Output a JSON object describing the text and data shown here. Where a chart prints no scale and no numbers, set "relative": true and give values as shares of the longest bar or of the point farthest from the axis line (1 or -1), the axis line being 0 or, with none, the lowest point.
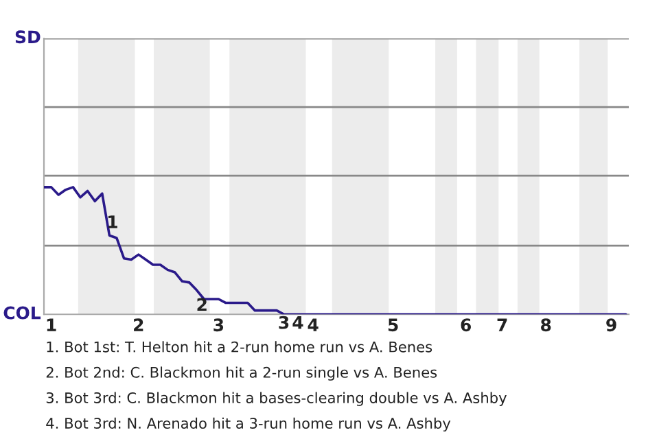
{
  "chart_data": {
    "type": "line",
    "relative": true,
    "categories": [
      null,
      "1",
      null,
      null,
      null,
      null,
      null,
      null,
      null,
      null,
      null,
      null,
      null,
      "2",
      null,
      null,
      null,
      null,
      null,
      null,
      null,
      null,
      null,
      null,
      "3",
      null,
      null,
      null,
      null,
      null,
      null,
      null,
      null,
      null,
      null,
      null,
      null,
      "4",
      null,
      null,
      null,
      null,
      null,
      null,
      null,
      null,
      null,
      null,
      "5",
      null,
      null,
      null,
      null,
      null,
      null,
      null,
      null,
      null,
      "6",
      null,
      null,
      null,
      null,
      "7",
      null,
      null,
      null,
      null,
      null,
      "8",
      null,
      null,
      null,
      null,
      null,
      null,
      null,
      null,
      "9",
      null,
      null
    ],
    "series": [
      {
        "color": "#2a1a8a",
        "values": [
          1,
          1,
          0.94,
          0.98,
          1,
          0.92,
          0.97,
          0.89,
          0.95,
          0.62,
          0.6,
          0.44,
          0.43,
          0.47,
          0.43,
          0.39,
          0.39,
          0.35,
          0.33,
          0.26,
          0.25,
          0.19,
          0.12,
          0.12,
          0.12,
          0.09,
          0.09,
          0.09,
          0.09,
          0.03,
          0.03,
          0.03,
          0.03,
          0,
          0,
          0,
          0,
          0,
          0,
          0,
          0,
          0,
          0,
          0,
          0,
          0,
          0,
          0,
          0,
          0,
          0,
          0,
          0,
          0,
          0,
          0,
          0,
          0,
          0,
          0,
          0,
          0,
          0,
          0,
          0,
          0,
          0,
          0,
          0,
          0,
          0,
          0,
          0,
          0,
          0,
          0,
          0,
          0,
          0,
          0,
          0
        ]
      }
    ],
    "marker": "none",
    "line_style": "solid",
    "legend": false,
    "ref_lines": [
      {
        "axis": "y",
        "value": 0.54,
        "color": "#888888"
      },
      {
        "axis": "y",
        "value": 1.09,
        "color": "#888888"
      },
      {
        "axis": "y",
        "value": 1.63,
        "color": "#888888"
      },
      {
        "axis": "y",
        "value": 2.17,
        "color": "#888888"
      }
    ],
    "annotations": [
      "SD",
      "COL",
      "1",
      "2",
      "3",
      "4",
      "1. Bot 1st: T. Helton hit a 2-run home run vs A. Benes",
      "2. Bot 2nd: C. Blackmon hit a 2-run single vs A. Benes",
      "3. Bot 3rd: C. Blackmon hit a bases-clearing double vs A. Ashby",
      "4. Bot 3rd: N. Arenado hit a 3-run home run vs A. Ashby"
    ]
  }
}
